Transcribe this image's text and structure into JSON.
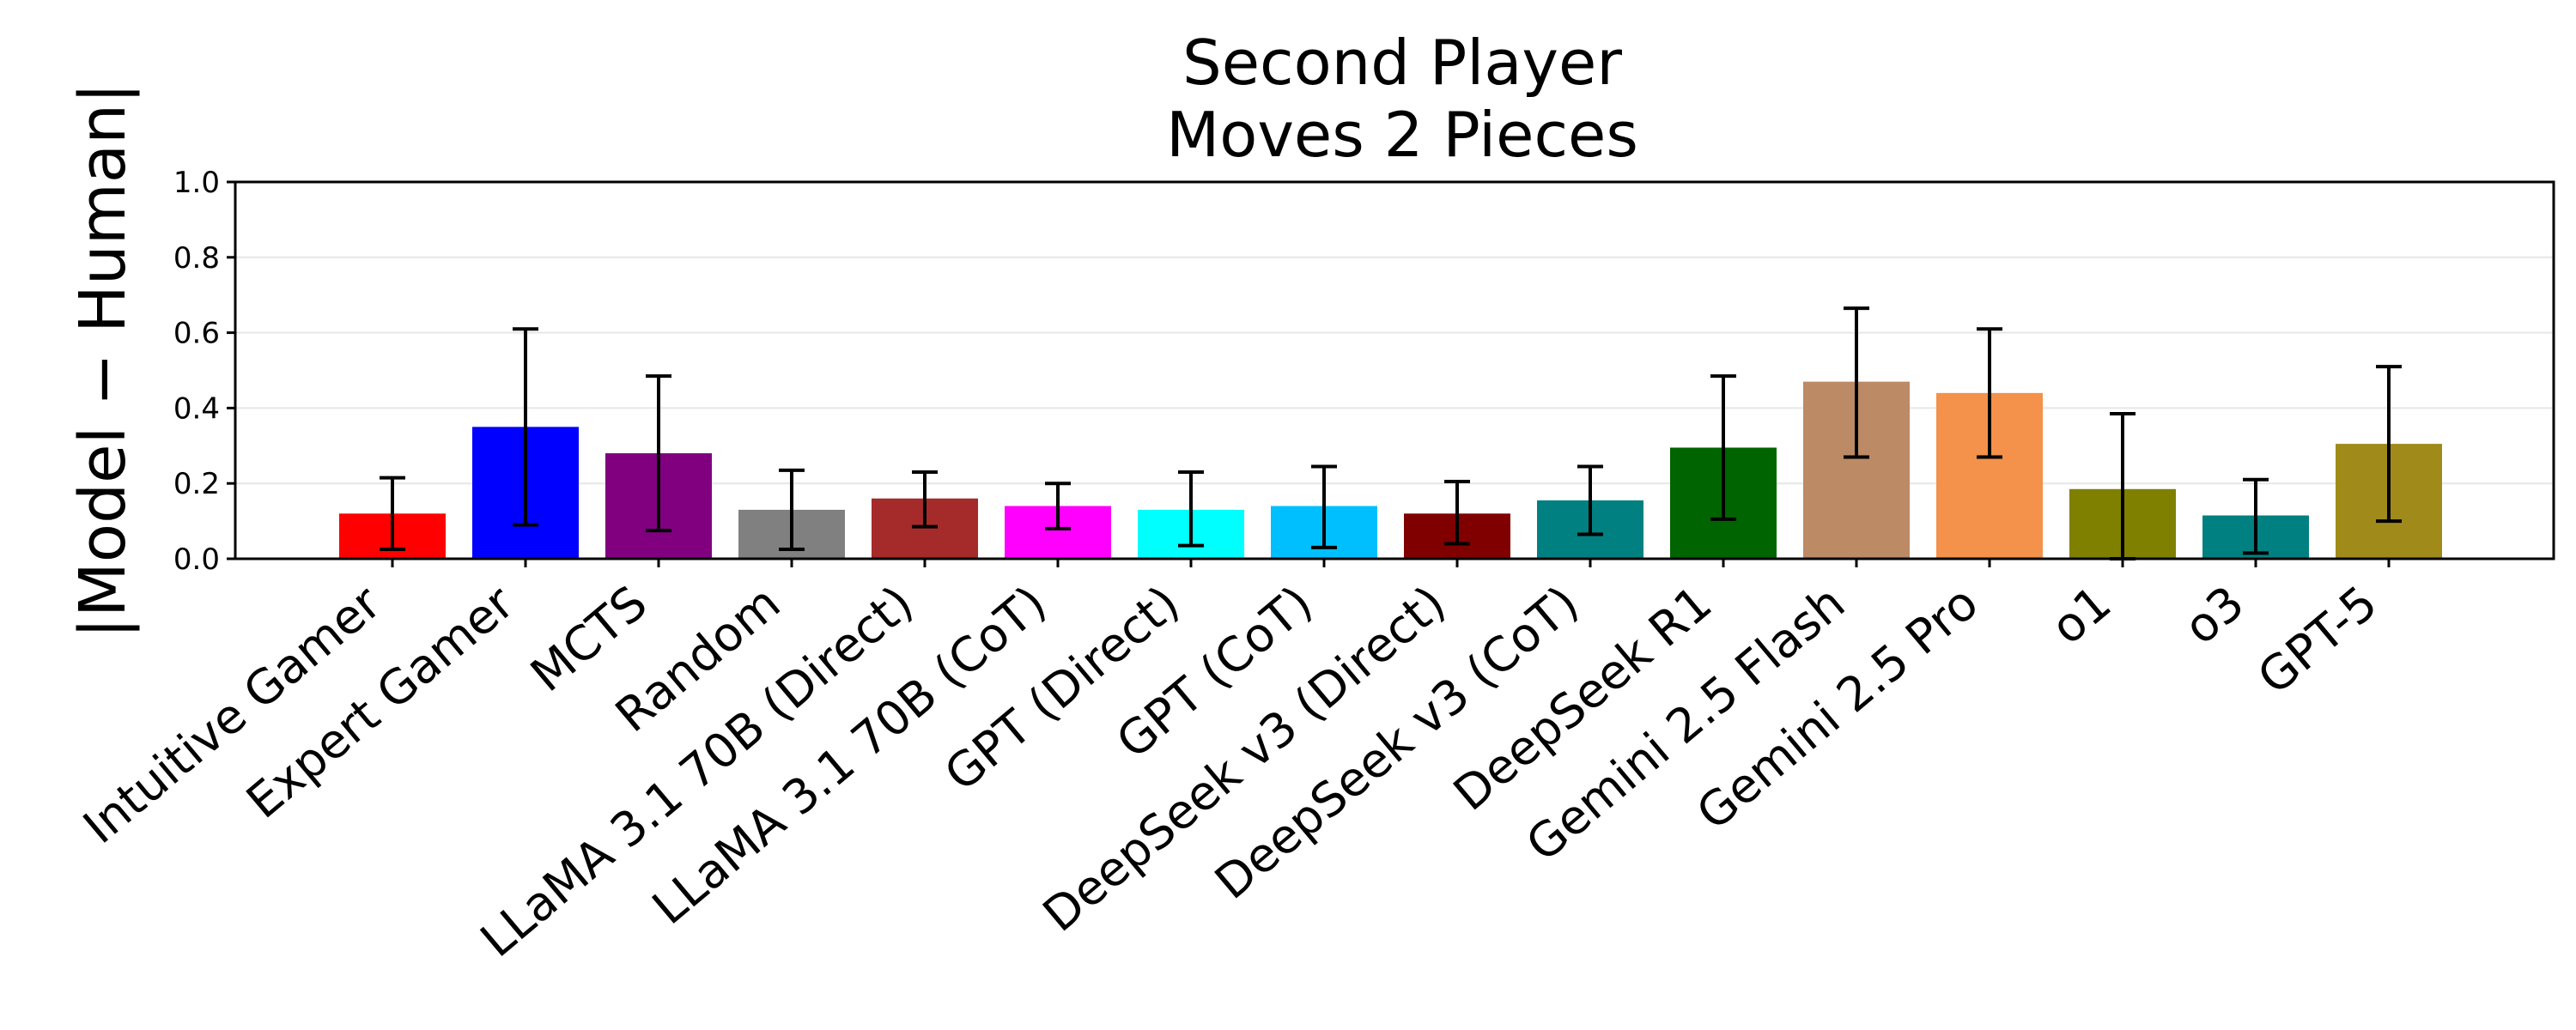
{
  "chart_data": {
    "type": "bar",
    "title_lines": [
      "Second Player",
      "Moves 2 Pieces"
    ],
    "xlabel": "",
    "ylabel": "|Model − Human|",
    "ylim": [
      0,
      1.0
    ],
    "yticks": [
      "0.0",
      "0.2",
      "0.4",
      "0.6",
      "0.8",
      "1.0"
    ],
    "grid": "horizontal",
    "categories": [
      "Intuitive Gamer",
      "Expert Gamer",
      "MCTS",
      "Random",
      "LLaMA 3.1 70B (Direct)",
      "LLaMA 3.1 70B (CoT)",
      "GPT (Direct)",
      "GPT (CoT)",
      "DeepSeek v3 (Direct)",
      "DeepSeek v3 (CoT)",
      "DeepSeek R1",
      "Gemini 2.5 Flash",
      "Gemini 2.5 Pro",
      "o1",
      "o3",
      "GPT-5"
    ],
    "values": [
      0.12,
      0.35,
      0.28,
      0.13,
      0.16,
      0.14,
      0.13,
      0.14,
      0.12,
      0.155,
      0.295,
      0.47,
      0.44,
      0.185,
      0.115,
      0.305
    ],
    "error_low": [
      0.025,
      0.09,
      0.075,
      0.025,
      0.085,
      0.08,
      0.035,
      0.03,
      0.04,
      0.065,
      0.105,
      0.27,
      0.27,
      0.0,
      0.015,
      0.1
    ],
    "error_high": [
      0.215,
      0.61,
      0.485,
      0.235,
      0.23,
      0.2,
      0.23,
      0.245,
      0.205,
      0.245,
      0.485,
      0.665,
      0.61,
      0.385,
      0.21,
      0.51
    ],
    "colors": [
      "#ff0000",
      "#0000ff",
      "#800080",
      "#808080",
      "#a52a2a",
      "#ff00ff",
      "#00ffff",
      "#00bfff",
      "#800000",
      "#008080",
      "#006400",
      "#bc8a64",
      "#f4914a",
      "#808000",
      "#008080",
      "#a08a1a"
    ]
  }
}
